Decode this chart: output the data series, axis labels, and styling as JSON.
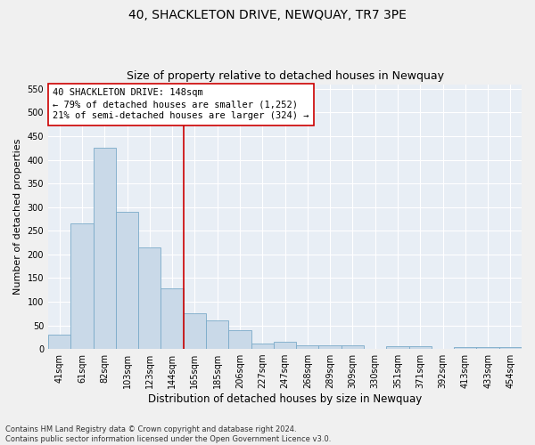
{
  "title": "40, SHACKLETON DRIVE, NEWQUAY, TR7 3PE",
  "subtitle": "Size of property relative to detached houses in Newquay",
  "xlabel": "Distribution of detached houses by size in Newquay",
  "ylabel": "Number of detached properties",
  "categories": [
    "41sqm",
    "61sqm",
    "82sqm",
    "103sqm",
    "123sqm",
    "144sqm",
    "165sqm",
    "185sqm",
    "206sqm",
    "227sqm",
    "247sqm",
    "268sqm",
    "289sqm",
    "309sqm",
    "330sqm",
    "351sqm",
    "371sqm",
    "392sqm",
    "413sqm",
    "433sqm",
    "454sqm"
  ],
  "values": [
    30,
    265,
    425,
    290,
    215,
    128,
    75,
    60,
    40,
    12,
    15,
    8,
    8,
    8,
    1,
    5,
    5,
    1,
    4,
    4,
    4
  ],
  "bar_color": "#c9d9e8",
  "bar_edge_color": "#7aaac8",
  "vline_x": 5.5,
  "vline_color": "#cc0000",
  "annotation_line1": "40 SHACKLETON DRIVE: 148sqm",
  "annotation_line2": "← 79% of detached houses are smaller (1,252)",
  "annotation_line3": "21% of semi-detached houses are larger (324) →",
  "annotation_box_color": "#ffffff",
  "annotation_box_edge": "#cc0000",
  "ylim": [
    0,
    560
  ],
  "yticks": [
    0,
    50,
    100,
    150,
    200,
    250,
    300,
    350,
    400,
    450,
    500,
    550
  ],
  "bg_color": "#e8eef5",
  "grid_color": "#ffffff",
  "footnote": "Contains HM Land Registry data © Crown copyright and database right 2024.\nContains public sector information licensed under the Open Government Licence v3.0.",
  "title_fontsize": 10,
  "subtitle_fontsize": 9,
  "xlabel_fontsize": 8.5,
  "ylabel_fontsize": 8,
  "tick_fontsize": 7,
  "annot_fontsize": 7.5,
  "footnote_fontsize": 6
}
